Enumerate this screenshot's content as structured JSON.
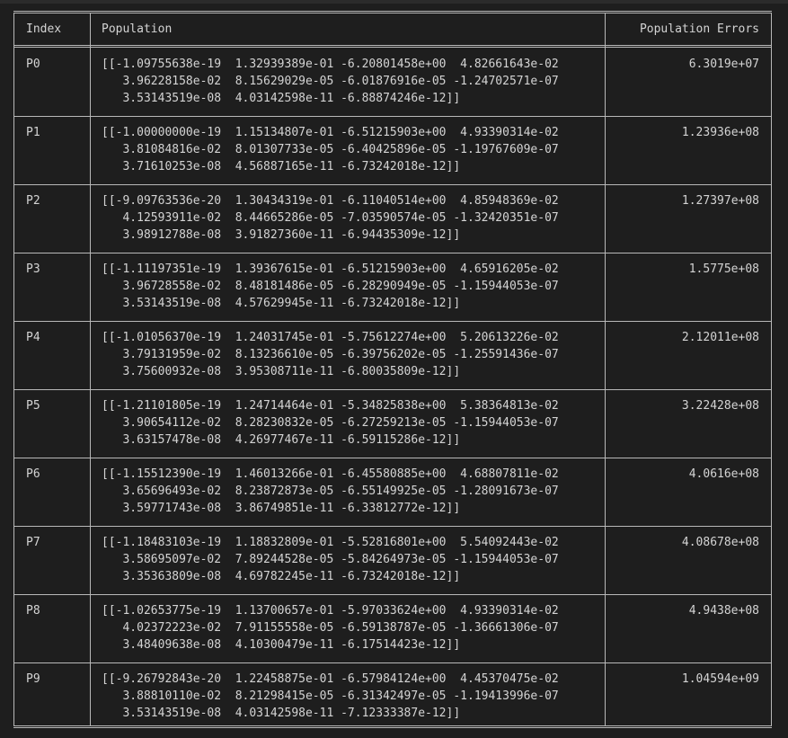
{
  "table": {
    "headers": {
      "index": "Index",
      "population": "Population",
      "errors": "Population Errors"
    },
    "rows": [
      {
        "index": "P0",
        "population": "[[-1.09755638e-19  1.32939389e-01 -6.20801458e+00  4.82661643e-02\n   3.96228158e-02  8.15629029e-05 -6.01876916e-05 -1.24702571e-07\n   3.53143519e-08  4.03142598e-11 -6.88874246e-12]]",
        "error": "6.3019e+07"
      },
      {
        "index": "P1",
        "population": "[[-1.00000000e-19  1.15134807e-01 -6.51215903e+00  4.93390314e-02\n   3.81084816e-02  8.01307733e-05 -6.40425896e-05 -1.19767609e-07\n   3.71610253e-08  4.56887165e-11 -6.73242018e-12]]",
        "error": "1.23936e+08"
      },
      {
        "index": "P2",
        "population": "[[-9.09763536e-20  1.30434319e-01 -6.11040514e+00  4.85948369e-02\n   4.12593911e-02  8.44665286e-05 -7.03590574e-05 -1.32420351e-07\n   3.98912788e-08  3.91827360e-11 -6.94435309e-12]]",
        "error": "1.27397e+08"
      },
      {
        "index": "P3",
        "population": "[[-1.11197351e-19  1.39367615e-01 -6.51215903e+00  4.65916205e-02\n   3.96728558e-02  8.48181486e-05 -6.28290949e-05 -1.15944053e-07\n   3.53143519e-08  4.57629945e-11 -6.73242018e-12]]",
        "error": "1.5775e+08"
      },
      {
        "index": "P4",
        "population": "[[-1.01056370e-19  1.24031745e-01 -5.75612274e+00  5.20613226e-02\n   3.79131959e-02  8.13236610e-05 -6.39756202e-05 -1.25591436e-07\n   3.75600932e-08  3.95308711e-11 -6.80035809e-12]]",
        "error": "2.12011e+08"
      },
      {
        "index": "P5",
        "population": "[[-1.21101805e-19  1.24714464e-01 -5.34825838e+00  5.38364813e-02\n   3.90654112e-02  8.28230832e-05 -6.27259213e-05 -1.15944053e-07\n   3.63157478e-08  4.26977467e-11 -6.59115286e-12]]",
        "error": "3.22428e+08"
      },
      {
        "index": "P6",
        "population": "[[-1.15512390e-19  1.46013266e-01 -6.45580885e+00  4.68807811e-02\n   3.65696493e-02  8.23872873e-05 -6.55149925e-05 -1.28091673e-07\n   3.59771743e-08  3.86749851e-11 -6.33812772e-12]]",
        "error": "4.0616e+08"
      },
      {
        "index": "P7",
        "population": "[[-1.18483103e-19  1.18832809e-01 -5.52816801e+00  5.54092443e-02\n   3.58695097e-02  7.89244528e-05 -5.84264973e-05 -1.15944053e-07\n   3.35363809e-08  4.69782245e-11 -6.73242018e-12]]",
        "error": "4.08678e+08"
      },
      {
        "index": "P8",
        "population": "[[-1.02653775e-19  1.13700657e-01 -5.97033624e+00  4.93390314e-02\n   4.02372223e-02  7.91155558e-05 -6.59138787e-05 -1.36661306e-07\n   3.48409638e-08  4.10300479e-11 -6.17514423e-12]]",
        "error": "4.9438e+08"
      },
      {
        "index": "P9",
        "population": "[[-9.26792843e-20  1.22458875e-01 -6.57984124e+00  4.45370475e-02\n   3.88810110e-02  8.21298415e-05 -6.31342497e-05 -1.19413996e-07\n   3.53143519e-08  4.03142598e-11 -7.12333387e-12]]",
        "error": "1.04594e+09"
      }
    ]
  }
}
